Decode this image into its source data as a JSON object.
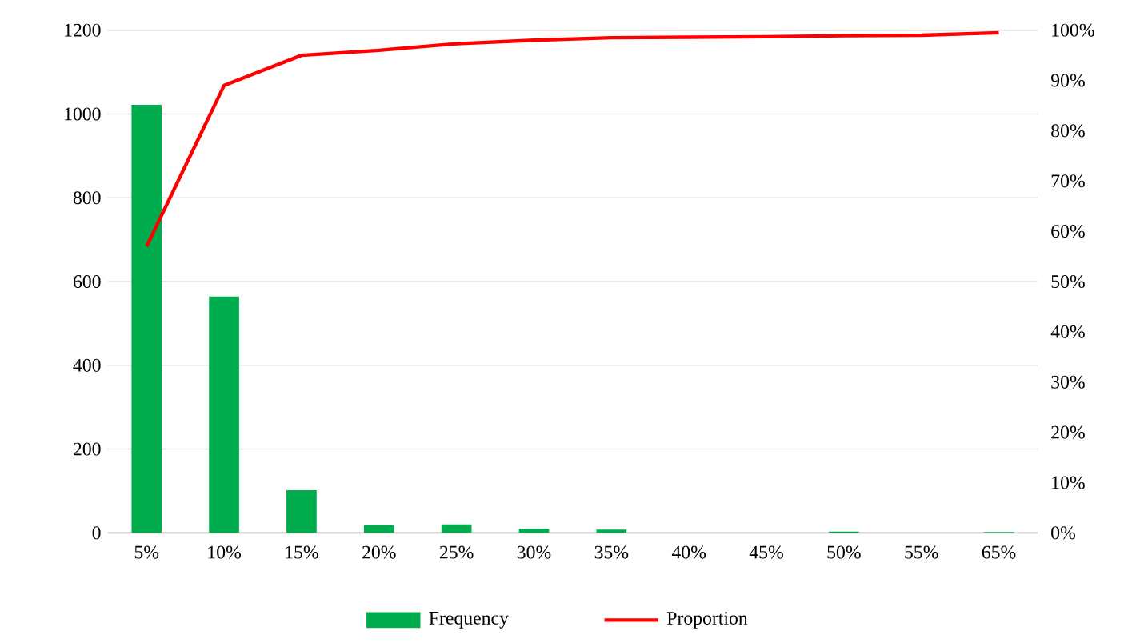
{
  "chart_data": {
    "type": "bar",
    "categories": [
      "5%",
      "10%",
      "15%",
      "20%",
      "25%",
      "30%",
      "35%",
      "40%",
      "45%",
      "50%",
      "55%",
      "65%"
    ],
    "series": [
      {
        "name": "Frequency",
        "color": "#00ad4e",
        "values": [
          1022,
          564,
          102,
          19,
          20,
          10,
          8,
          0,
          0,
          3,
          0,
          2
        ]
      },
      {
        "name": "Proportion",
        "type": "line",
        "axis": "y2",
        "color": "#ff0000",
        "marker": "none",
        "values": [
          57,
          89,
          95,
          96,
          97.3,
          98,
          98.5,
          98.6,
          98.7,
          98.9,
          99,
          99.5
        ]
      }
    ],
    "ylim": [
      0,
      1200
    ],
    "yticks": [
      0,
      200,
      400,
      600,
      800,
      1000,
      1200
    ],
    "y2lim": [
      0,
      100
    ],
    "y2ticks": [
      {
        "value": 0,
        "label": "0%"
      },
      {
        "value": 10,
        "label": "10%"
      },
      {
        "value": 20,
        "label": "20%"
      },
      {
        "value": 30,
        "label": "30%"
      },
      {
        "value": 40,
        "label": "40%"
      },
      {
        "value": 50,
        "label": "50%"
      },
      {
        "value": 60,
        "label": "60%"
      },
      {
        "value": 70,
        "label": "70%"
      },
      {
        "value": 80,
        "label": "80%"
      },
      {
        "value": 90,
        "label": "90%"
      },
      {
        "value": 100,
        "label": "100%"
      }
    ],
    "grid": "y",
    "legend": "bottom"
  }
}
